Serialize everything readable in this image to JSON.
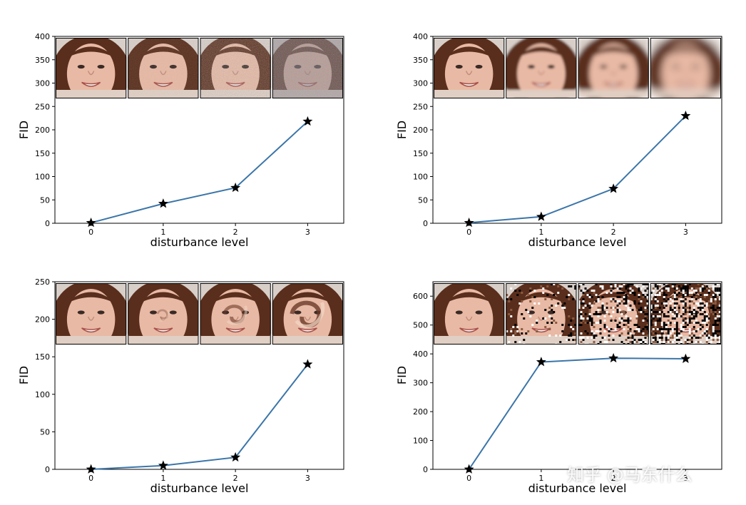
{
  "chart_data": [
    {
      "type": "line",
      "xlabel": "disturbance level",
      "ylabel": "FID",
      "x": [
        0,
        1,
        2,
        3
      ],
      "xticks": [
        "0",
        "1",
        "2",
        "3"
      ],
      "series": [
        {
          "values": [
            1,
            42,
            76,
            218
          ]
        }
      ],
      "ylim": [
        0,
        400
      ],
      "yticks": [
        "0",
        "50",
        "100",
        "150",
        "200",
        "250",
        "300",
        "350",
        "400"
      ],
      "marker": "star",
      "line_color": "#3b75a8",
      "grid": false,
      "inset_images": [
        "face-clean",
        "face-noise-light",
        "face-noise-medium",
        "face-noise-heavy"
      ]
    },
    {
      "type": "line",
      "xlabel": "disturbance level",
      "ylabel": "FID",
      "x": [
        0,
        1,
        2,
        3
      ],
      "xticks": [
        "0",
        "1",
        "2",
        "3"
      ],
      "series": [
        {
          "values": [
            1,
            14,
            74,
            230
          ]
        }
      ],
      "ylim": [
        0,
        400
      ],
      "yticks": [
        "0",
        "50",
        "100",
        "150",
        "200",
        "250",
        "300",
        "350",
        "400"
      ],
      "marker": "star",
      "line_color": "#3b75a8",
      "grid": false,
      "inset_images": [
        "face-clean",
        "face-blur-light",
        "face-blur-medium",
        "face-blur-heavy"
      ]
    },
    {
      "type": "line",
      "xlabel": "disturbance level",
      "ylabel": "FID",
      "x": [
        0,
        1,
        2,
        3
      ],
      "xticks": [
        "0",
        "1",
        "2",
        "3"
      ],
      "series": [
        {
          "values": [
            0,
            5,
            16,
            140
          ]
        }
      ],
      "ylim": [
        0,
        250
      ],
      "yticks": [
        "0",
        "50",
        "100",
        "150",
        "200",
        "250"
      ],
      "marker": "star",
      "line_color": "#3b75a8",
      "grid": false,
      "inset_images": [
        "face-clean",
        "face-swirl-light",
        "face-swirl-medium",
        "face-swirl-heavy"
      ]
    },
    {
      "type": "line",
      "xlabel": "disturbance level",
      "ylabel": "FID",
      "x": [
        0,
        1,
        2,
        3
      ],
      "xticks": [
        "0",
        "1",
        "2",
        "3"
      ],
      "series": [
        {
          "values": [
            0,
            372,
            385,
            383
          ]
        }
      ],
      "ylim": [
        0,
        650
      ],
      "yticks": [
        "0",
        "100",
        "200",
        "300",
        "400",
        "500",
        "600"
      ],
      "marker": "star",
      "line_color": "#3b75a8",
      "grid": false,
      "inset_images": [
        "face-clean",
        "face-saltpepper-light",
        "face-saltpepper-medium",
        "face-saltpepper-heavy"
      ]
    }
  ],
  "watermark": "知乎 @马东什么"
}
